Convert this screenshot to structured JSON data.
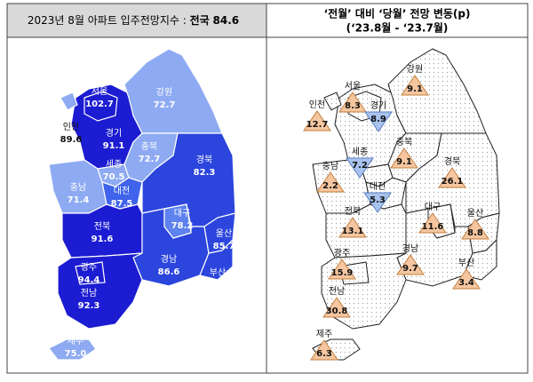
{
  "left": {
    "title": "2023년 8월 아파트 입주전망지수 :",
    "national_name": "전국",
    "national_value": 84.6,
    "regions": [
      {
        "name": "서울",
        "value": 102.7,
        "color": "#1c1cd2"
      },
      {
        "name": "인천",
        "value": 89.6,
        "color": "#8eaaf2"
      },
      {
        "name": "경기",
        "value": 91.1,
        "color": "#1c1cd2"
      },
      {
        "name": "강원",
        "value": 72.7,
        "color": "#8eaaf2"
      },
      {
        "name": "충북",
        "value": 72.7,
        "color": "#8eaaf2"
      },
      {
        "name": "세종",
        "value": 70.5,
        "color": "#8eaaf2"
      },
      {
        "name": "충남",
        "value": 71.4,
        "color": "#8eaaf2"
      },
      {
        "name": "대전",
        "value": 87.5,
        "color": "#3f63ea"
      },
      {
        "name": "경북",
        "value": 82.3,
        "color": "#2b45dd"
      },
      {
        "name": "대구",
        "value": 78.2,
        "color": "#5e82ee"
      },
      {
        "name": "전북",
        "value": 91.6,
        "color": "#1c1cd2"
      },
      {
        "name": "울산",
        "value": 85.7,
        "color": "#2b45dd"
      },
      {
        "name": "경남",
        "value": 86.6,
        "color": "#2b45dd"
      },
      {
        "name": "부산",
        "value": 85.7,
        "color": "#2b45dd"
      },
      {
        "name": "광주",
        "value": 94.4,
        "color": "#1c1cd2"
      },
      {
        "name": "전남",
        "value": 92.3,
        "color": "#1c1cd2"
      },
      {
        "name": "제주",
        "value": {
          "value": 75,
          "label": "75.0"
        },
        "color": "#8eaaf2"
      }
    ]
  },
  "right": {
    "title": "‘전월’ 대비 ‘당월’ 전망 변동(p)",
    "subtitle": "(‘23.8월 - ‘23.7월)",
    "up_color": "#f5c6a0",
    "down_color": "#a8c3ee",
    "regions": [
      {
        "name": "서울",
        "value": 8.3
      },
      {
        "name": "인천",
        "value": 12.7
      },
      {
        "name": "경기",
        "value": {
          "value": -8.9,
          "label": "8.9"
        }
      },
      {
        "name": "강원",
        "value": 9.1
      },
      {
        "name": "충북",
        "value": 9.1
      },
      {
        "name": "세종",
        "value": {
          "value": -7.2,
          "label": "7.2"
        }
      },
      {
        "name": "충남",
        "value": 2.2
      },
      {
        "name": "대전",
        "value": {
          "value": -5.3,
          "label": "5.3"
        }
      },
      {
        "name": "경북",
        "value": 26.1
      },
      {
        "name": "대구",
        "value": 11.6
      },
      {
        "name": "전북",
        "value": 13.1
      },
      {
        "name": "울산",
        "value": 8.8
      },
      {
        "name": "경남",
        "value": 9.7
      },
      {
        "name": "부산",
        "value": 3.4
      },
      {
        "name": "광주",
        "value": 15.9
      },
      {
        "name": "전남",
        "value": 30.8
      },
      {
        "name": "제주",
        "value": 6.3
      }
    ]
  }
}
